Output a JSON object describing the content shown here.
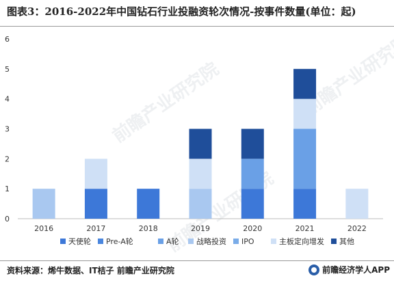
{
  "title": "图表3：2016-2022年中国钻石行业投融资轮次情况-按事件数量(单位：起)",
  "source": "资料来源：烯牛数据、IT桔子 前瞻产业研究院",
  "brand": "前瞻经济学人APP",
  "watermark": "前瞻产业研究院",
  "colors": {
    "天使轮": "#3d78d8",
    "Pre-A轮": "#4a86de",
    "A轮": "#6aa0e6",
    "战略投资": "#a9c8f0",
    "IPO": "#7aace8",
    "主板定向增发": "#cfe0f6",
    "其他": "#1f4e9a"
  },
  "chart_data": {
    "type": "bar",
    "stacked": true,
    "categories": [
      "2016",
      "2017",
      "2018",
      "2019",
      "2020",
      "2021",
      "2022"
    ],
    "ylim": [
      0,
      6
    ],
    "yticks": [
      0,
      1,
      2,
      3,
      4,
      5,
      6
    ],
    "grid": false,
    "legend_position": "bottom",
    "series": [
      {
        "name": "天使轮",
        "values": [
          0,
          1,
          1,
          0,
          1,
          1,
          0
        ]
      },
      {
        "name": "Pre-A轮",
        "values": [
          0,
          0,
          0,
          0,
          0,
          0,
          0
        ]
      },
      {
        "name": "A轮",
        "values": [
          0,
          0,
          0,
          0,
          1,
          2,
          0
        ]
      },
      {
        "name": "战略投资",
        "values": [
          1,
          0,
          0,
          1,
          0,
          0,
          0
        ]
      },
      {
        "name": "IPO",
        "values": [
          0,
          0,
          0,
          0,
          0,
          0,
          0
        ]
      },
      {
        "name": "主板定向增发",
        "values": [
          0,
          1,
          0,
          1,
          0,
          1,
          1
        ]
      },
      {
        "name": "其他",
        "values": [
          0,
          0,
          0,
          1,
          1,
          1,
          0
        ]
      }
    ]
  }
}
